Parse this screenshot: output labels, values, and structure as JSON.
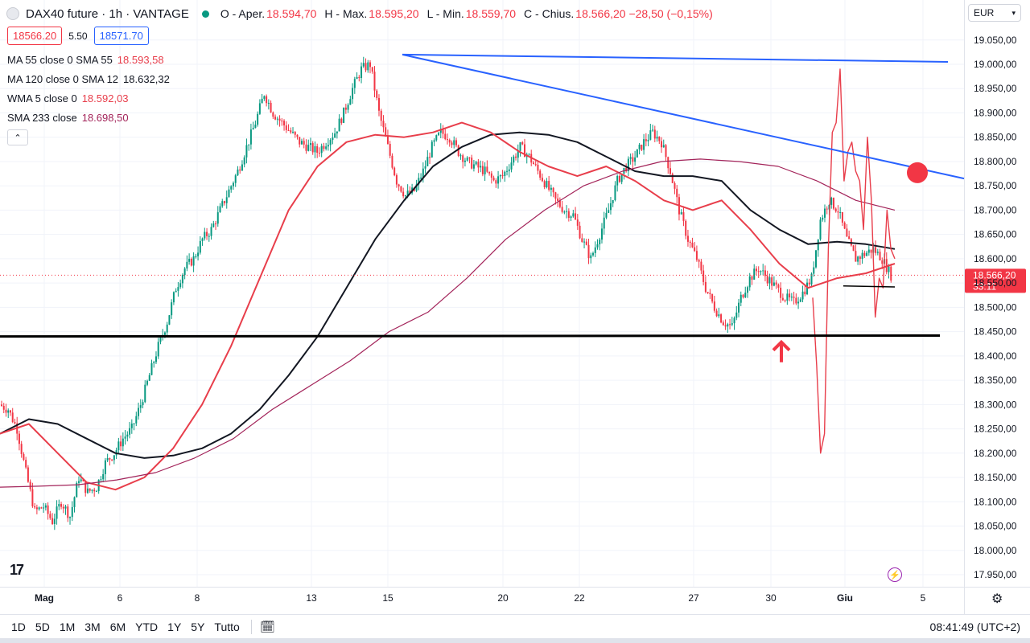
{
  "header": {
    "title": "DAX40 future · 1h · VANTAGE",
    "ohlc": [
      {
        "key": "O - Aper.",
        "value": "18.594,70"
      },
      {
        "key": "H - Max.",
        "value": "18.595,20"
      },
      {
        "key": "L - Min.",
        "value": "18.559,70"
      },
      {
        "key": "C - Chius.",
        "value": "18.566,20 −28,50 (−0,15%)"
      }
    ],
    "status_color": "#089981"
  },
  "trade": {
    "sell": "18566.20",
    "spread": "5.50",
    "buy": "18571.70"
  },
  "indicators": [
    {
      "label": "MA 55 close 0 SMA 55",
      "value": "18.593,58",
      "color": "#e83e4b"
    },
    {
      "label": "MA 120 close 0 SMA 12",
      "value": "18.632,32",
      "color": "#131722"
    },
    {
      "label": "WMA 5 close 0",
      "value": "18.592,03",
      "color": "#e83e4b"
    },
    {
      "label": "SMA 233 close",
      "value": "18.698,50",
      "color": "#a3245a"
    }
  ],
  "collapse_icon": "chevron-up-icon",
  "currency": "EUR",
  "logo_text": "17",
  "chart_data": {
    "type": "line",
    "ylim": [
      17925,
      19090
    ],
    "yticks": [
      "19.050,00",
      "19.000,00",
      "18.950,00",
      "18.900,00",
      "18.850,00",
      "18.800,00",
      "18.750,00",
      "18.700,00",
      "18.650,00",
      "18.600,00",
      "18.550,00",
      "18.500,00",
      "18.450,00",
      "18.400,00",
      "18.350,00",
      "18.300,00",
      "18.250,00",
      "18.200,00",
      "18.150,00",
      "18.100,00",
      "18.050,00",
      "18.000,00",
      "17.950,00"
    ],
    "xticks": [
      "Mag",
      "6",
      "8",
      "13",
      "15",
      "20",
      "22",
      "27",
      "30",
      "Giu",
      "5"
    ],
    "last_price": {
      "value": 18566.2,
      "label": "18.566,20",
      "countdown": "33:11",
      "color": "#f23645"
    },
    "candles_close": [
      18300,
      18290,
      18250,
      18160,
      18080,
      18090,
      18060,
      18100,
      18070,
      18150,
      18120,
      18130,
      18180,
      18200,
      18230,
      18250,
      18300,
      18360,
      18420,
      18470,
      18540,
      18580,
      18600,
      18640,
      18660,
      18700,
      18740,
      18780,
      18830,
      18880,
      18940,
      18900,
      18880,
      18860,
      18840,
      18830,
      18820,
      18840,
      18860,
      18900,
      18950,
      18990,
      19000,
      18900,
      18830,
      18760,
      18730,
      18740,
      18780,
      18830,
      18860,
      18850,
      18820,
      18800,
      18790,
      18780,
      18760,
      18770,
      18800,
      18830,
      18810,
      18780,
      18750,
      18720,
      18700,
      18690,
      18640,
      18600,
      18650,
      18700,
      18760,
      18790,
      18810,
      18840,
      18860,
      18840,
      18780,
      18700,
      18640,
      18600,
      18540,
      18500,
      18470,
      18460,
      18520,
      18560,
      18580,
      18560,
      18540,
      18520,
      18510,
      18530,
      18560,
      18680,
      18720,
      18700,
      18640,
      18600,
      18610,
      18620,
      18600,
      18566
    ],
    "series": [
      {
        "values": [
          18240,
          18270,
          18260,
          18230,
          18200,
          18190,
          18195,
          18210,
          18240,
          18290,
          18360,
          18440,
          18540,
          18640,
          18720,
          18790,
          18830,
          18855,
          18860,
          18855,
          18840,
          18810,
          18780,
          18770,
          18770,
          18760,
          18700,
          18660,
          18630,
          18635,
          18630,
          18620
        ],
        "color": "#131722"
      },
      {
        "values": [
          18240,
          18260,
          18200,
          18140,
          18125,
          18150,
          18210,
          18300,
          18420,
          18560,
          18700,
          18790,
          18840,
          18855,
          18850,
          18860,
          18880,
          18860,
          18820,
          18790,
          18770,
          18790,
          18760,
          18720,
          18700,
          18720,
          18660,
          18590,
          18540,
          18560,
          18570,
          18590
        ],
        "color": "#e83e4b"
      },
      {
        "values": [
          18130,
          18132,
          18135,
          18145,
          18160,
          18190,
          18230,
          18290,
          18340,
          18390,
          18450,
          18490,
          18560,
          18640,
          18700,
          18750,
          18780,
          18800,
          18805,
          18800,
          18790,
          18760,
          18720,
          18700
        ],
        "color": "#a3245a"
      },
      {
        "values": [
          18520,
          18380,
          18200,
          18240,
          18620,
          18860,
          18880,
          18990,
          18760,
          18820,
          18840,
          18780,
          18760,
          18660,
          18850,
          18720,
          18480,
          18560,
          18540,
          18700,
          18620,
          18600
        ],
        "color": "#e83e4b"
      }
    ],
    "annotations": [
      {
        "type": "trendline",
        "from": [
          "15",
          19020
        ],
        "to": [
          "5",
          19005
        ],
        "color": "#2962ff"
      },
      {
        "type": "trendline",
        "from": [
          "15",
          19020
        ],
        "to": [
          "5",
          18765
        ],
        "color": "#2962ff"
      },
      {
        "type": "hline",
        "from": [
          "start",
          18440
        ],
        "to": [
          "5",
          18442
        ],
        "color": "#000000"
      },
      {
        "type": "hline",
        "from": [
          "Giu",
          18544
        ],
        "to": [
          "5",
          18542
        ],
        "color": "#000000"
      },
      {
        "type": "marker-circle",
        "at": [
          "5",
          18777
        ],
        "color": "#f23645"
      },
      {
        "type": "arrow-up",
        "at": [
          "30",
          18420
        ],
        "color": "#f23645"
      }
    ]
  },
  "bottom": {
    "ranges": [
      "1D",
      "5D",
      "1M",
      "3M",
      "6M",
      "YTD",
      "1Y",
      "5Y",
      "Tutto"
    ],
    "calendar_icon": "calendar-icon",
    "clock": "08:41:49 (UTC+2)"
  },
  "settings_icon": "gear-icon"
}
